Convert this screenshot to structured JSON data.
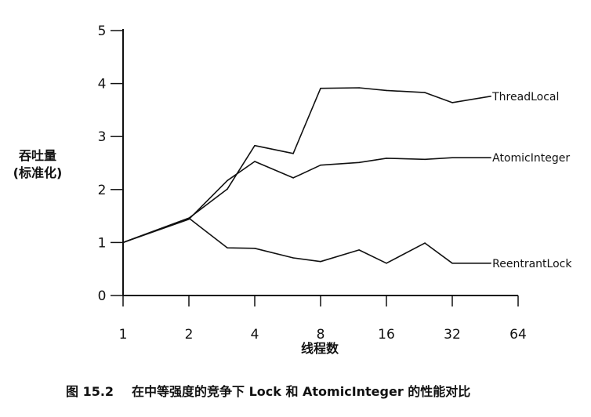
{
  "chart_data": {
    "type": "line",
    "title": "",
    "caption_number": "图 15.2",
    "caption_text": "在中等强度的竞争下 Lock 和 AtomicInteger 的性能对比",
    "xlabel": "线程数",
    "ylabel_lines": [
      "吞吐量",
      "(标准化)"
    ],
    "x_scale": "log2",
    "x_ticks": [
      1,
      2,
      4,
      8,
      16,
      32,
      64
    ],
    "y_ticks": [
      0,
      1,
      2,
      3,
      4,
      5
    ],
    "xlim": [
      1,
      64
    ],
    "ylim": [
      0,
      5
    ],
    "grid": false,
    "legend": "inline labels at line ends (right)",
    "line_color": "#111111",
    "series": [
      {
        "name": "ThreadLocal",
        "x": [
          1,
          2,
          3,
          4,
          6,
          8,
          12,
          16,
          24,
          32,
          48
        ],
        "values": [
          1.0,
          1.46,
          2.01,
          2.83,
          2.68,
          3.91,
          3.92,
          3.87,
          3.83,
          3.64,
          3.76
        ]
      },
      {
        "name": "AtomicInteger",
        "x": [
          1,
          2,
          3,
          4,
          6,
          8,
          12,
          16,
          24,
          32,
          48
        ],
        "values": [
          1.0,
          1.44,
          2.17,
          2.53,
          2.22,
          2.46,
          2.51,
          2.59,
          2.57,
          2.6,
          2.6
        ]
      },
      {
        "name": "ReentrantLock",
        "x": [
          1,
          2,
          3,
          4,
          6,
          8,
          12,
          16,
          24,
          32,
          48
        ],
        "values": [
          1.0,
          1.46,
          0.9,
          0.89,
          0.71,
          0.64,
          0.86,
          0.61,
          0.99,
          0.61,
          0.61
        ]
      }
    ]
  }
}
